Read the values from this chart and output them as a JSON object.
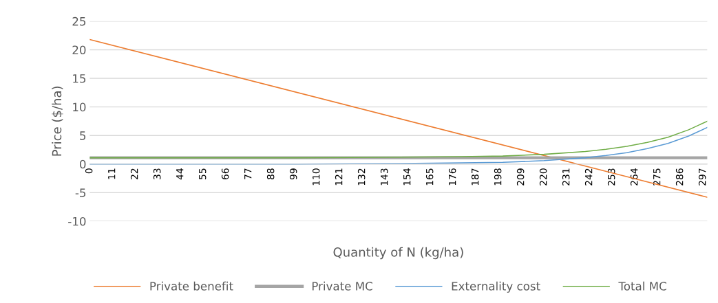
{
  "chart_data": {
    "type": "line",
    "xlabel": "Quantity of N (kg/ha)",
    "ylabel": "Price ($/ha)",
    "xlim": [
      0,
      299
    ],
    "xticks": [
      0,
      11,
      22,
      33,
      44,
      55,
      66,
      77,
      88,
      99,
      110,
      121,
      132,
      143,
      154,
      165,
      176,
      187,
      198,
      209,
      220,
      231,
      242,
      253,
      264,
      275,
      286,
      297
    ],
    "ylim": [
      -10,
      25
    ],
    "yticks": [
      -10,
      -5,
      0,
      5,
      10,
      15,
      20,
      25
    ],
    "grid": "y",
    "legend": "bottom",
    "marker": "none",
    "line_style": "solid",
    "series": [
      {
        "name": "Private benefit",
        "color": "#ed7d31",
        "x": [
          0,
          299
        ],
        "values": [
          21.8,
          -5.8
        ]
      },
      {
        "name": "Private MC",
        "color": "#a5a5a5",
        "x": [
          0,
          299
        ],
        "values": [
          1.1,
          1.1
        ]
      },
      {
        "name": "Externality cost",
        "color": "#5b9bd5",
        "x": [
          0,
          50,
          100,
          150,
          180,
          200,
          220,
          240,
          250,
          260,
          270,
          280,
          290,
          299
        ],
        "values": [
          0,
          0,
          0,
          0.1,
          0.2,
          0.3,
          0.6,
          1.1,
          1.5,
          2.0,
          2.7,
          3.6,
          4.9,
          6.4
        ]
      },
      {
        "name": "Total MC",
        "color": "#70ad47",
        "x": [
          0,
          50,
          100,
          150,
          180,
          200,
          220,
          240,
          250,
          260,
          270,
          280,
          290,
          299
        ],
        "values": [
          1.1,
          1.1,
          1.1,
          1.2,
          1.3,
          1.4,
          1.7,
          2.2,
          2.6,
          3.1,
          3.8,
          4.7,
          6.0,
          7.5
        ]
      }
    ]
  }
}
